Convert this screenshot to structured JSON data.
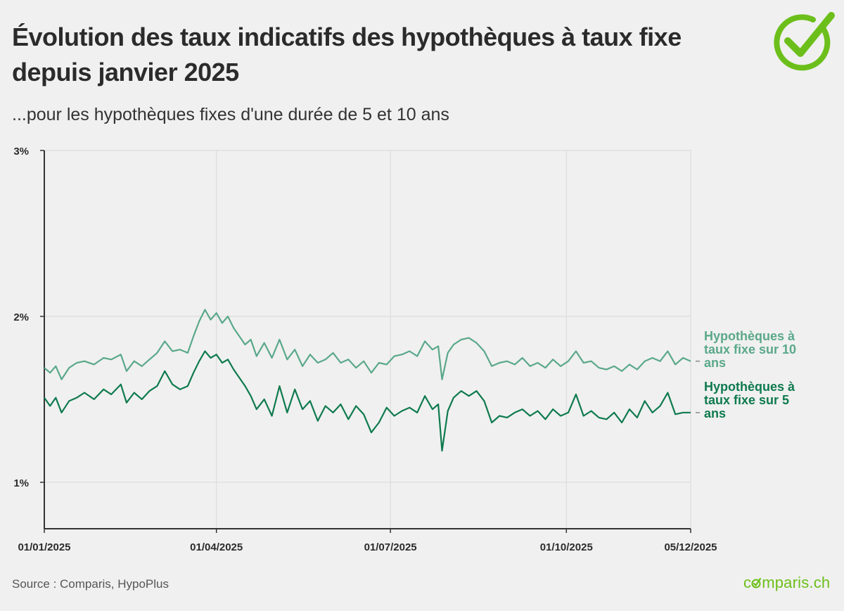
{
  "title": "Évolution des taux indicatifs des hypothèques à taux fixe depuis janvier 2025",
  "subtitle": "...pour les hypothèques fixes d'une durée de 5 et 10 ans",
  "source": "Source : Comparis, HypoPlus",
  "brand": {
    "before": "c",
    "after": "mparis.ch",
    "logo_icon": "check-circle-icon",
    "color": "#6cbf1a"
  },
  "chart_data": {
    "type": "line",
    "title": "Évolution des taux indicatifs des hypothèques à taux fixe depuis janvier 2025",
    "subtitle": "...pour les hypothèques fixes d'une durée de 5 et 10 ans",
    "xlabel": "",
    "ylabel": "",
    "x_range": [
      "2025-01-01",
      "2025-12-05"
    ],
    "x_ticks": [
      "01/01/2025",
      "01/04/2025",
      "01/07/2025",
      "01/10/2025",
      "05/12/2025"
    ],
    "y_ticks": [
      "1%",
      "2%",
      "3%"
    ],
    "ylim": [
      0.72,
      3.0
    ],
    "y_unit": "%",
    "grid": true,
    "legend": "direct labels at right end of each line",
    "series": [
      {
        "name": "Hypothèques à taux fixe sur 10 ans",
        "label_lines": [
          "Hypothèques à",
          "taux fixe sur 10",
          "ans"
        ],
        "color": "#5aa88a",
        "points": [
          [
            "2025-01-01",
            1.69
          ],
          [
            "2025-01-04",
            1.66
          ],
          [
            "2025-01-07",
            1.7
          ],
          [
            "2025-01-10",
            1.62
          ],
          [
            "2025-01-14",
            1.69
          ],
          [
            "2025-01-18",
            1.72
          ],
          [
            "2025-01-22",
            1.73
          ],
          [
            "2025-01-27",
            1.71
          ],
          [
            "2025-02-01",
            1.75
          ],
          [
            "2025-02-05",
            1.74
          ],
          [
            "2025-02-10",
            1.77
          ],
          [
            "2025-02-13",
            1.67
          ],
          [
            "2025-02-17",
            1.73
          ],
          [
            "2025-02-21",
            1.7
          ],
          [
            "2025-02-25",
            1.74
          ],
          [
            "2025-03-01",
            1.78
          ],
          [
            "2025-03-05",
            1.85
          ],
          [
            "2025-03-09",
            1.79
          ],
          [
            "2025-03-13",
            1.8
          ],
          [
            "2025-03-17",
            1.78
          ],
          [
            "2025-03-20",
            1.88
          ],
          [
            "2025-03-23",
            1.97
          ],
          [
            "2025-03-26",
            2.04
          ],
          [
            "2025-03-29",
            1.98
          ],
          [
            "2025-04-01",
            2.02
          ],
          [
            "2025-04-04",
            1.96
          ],
          [
            "2025-04-07",
            2.0
          ],
          [
            "2025-04-10",
            1.93
          ],
          [
            "2025-04-13",
            1.88
          ],
          [
            "2025-04-16",
            1.83
          ],
          [
            "2025-04-19",
            1.86
          ],
          [
            "2025-04-22",
            1.76
          ],
          [
            "2025-04-26",
            1.84
          ],
          [
            "2025-04-30",
            1.75
          ],
          [
            "2025-05-04",
            1.86
          ],
          [
            "2025-05-08",
            1.74
          ],
          [
            "2025-05-12",
            1.8
          ],
          [
            "2025-05-16",
            1.7
          ],
          [
            "2025-05-20",
            1.77
          ],
          [
            "2025-05-24",
            1.72
          ],
          [
            "2025-05-28",
            1.74
          ],
          [
            "2025-06-01",
            1.78
          ],
          [
            "2025-06-05",
            1.72
          ],
          [
            "2025-06-09",
            1.74
          ],
          [
            "2025-06-13",
            1.69
          ],
          [
            "2025-06-17",
            1.73
          ],
          [
            "2025-06-21",
            1.66
          ],
          [
            "2025-06-25",
            1.72
          ],
          [
            "2025-06-29",
            1.71
          ],
          [
            "2025-07-03",
            1.76
          ],
          [
            "2025-07-07",
            1.77
          ],
          [
            "2025-07-11",
            1.79
          ],
          [
            "2025-07-15",
            1.76
          ],
          [
            "2025-07-19",
            1.85
          ],
          [
            "2025-07-23",
            1.8
          ],
          [
            "2025-07-26",
            1.82
          ],
          [
            "2025-07-28",
            1.62
          ],
          [
            "2025-07-31",
            1.78
          ],
          [
            "2025-08-03",
            1.83
          ],
          [
            "2025-08-07",
            1.86
          ],
          [
            "2025-08-11",
            1.87
          ],
          [
            "2025-08-15",
            1.84
          ],
          [
            "2025-08-19",
            1.79
          ],
          [
            "2025-08-23",
            1.7
          ],
          [
            "2025-08-27",
            1.72
          ],
          [
            "2025-08-31",
            1.73
          ],
          [
            "2025-09-04",
            1.71
          ],
          [
            "2025-09-08",
            1.75
          ],
          [
            "2025-09-12",
            1.7
          ],
          [
            "2025-09-16",
            1.72
          ],
          [
            "2025-09-20",
            1.69
          ],
          [
            "2025-09-24",
            1.74
          ],
          [
            "2025-09-28",
            1.7
          ],
          [
            "2025-10-02",
            1.73
          ],
          [
            "2025-10-06",
            1.79
          ],
          [
            "2025-10-10",
            1.72
          ],
          [
            "2025-10-14",
            1.73
          ],
          [
            "2025-10-18",
            1.69
          ],
          [
            "2025-10-22",
            1.68
          ],
          [
            "2025-10-26",
            1.7
          ],
          [
            "2025-10-30",
            1.67
          ],
          [
            "2025-11-03",
            1.71
          ],
          [
            "2025-11-07",
            1.68
          ],
          [
            "2025-11-11",
            1.73
          ],
          [
            "2025-11-15",
            1.75
          ],
          [
            "2025-11-19",
            1.73
          ],
          [
            "2025-11-23",
            1.79
          ],
          [
            "2025-11-27",
            1.71
          ],
          [
            "2025-12-01",
            1.75
          ],
          [
            "2025-12-05",
            1.73
          ]
        ]
      },
      {
        "name": "Hypothèques à taux fixe sur 5 ans",
        "label_lines": [
          "Hypothèques à",
          "taux fixe sur 5",
          "ans"
        ],
        "color": "#0e7a4e",
        "points": [
          [
            "2025-01-01",
            1.51
          ],
          [
            "2025-01-04",
            1.46
          ],
          [
            "2025-01-07",
            1.51
          ],
          [
            "2025-01-10",
            1.42
          ],
          [
            "2025-01-14",
            1.49
          ],
          [
            "2025-01-18",
            1.51
          ],
          [
            "2025-01-22",
            1.54
          ],
          [
            "2025-01-27",
            1.5
          ],
          [
            "2025-02-01",
            1.56
          ],
          [
            "2025-02-05",
            1.53
          ],
          [
            "2025-02-10",
            1.59
          ],
          [
            "2025-02-13",
            1.48
          ],
          [
            "2025-02-17",
            1.54
          ],
          [
            "2025-02-21",
            1.5
          ],
          [
            "2025-02-25",
            1.55
          ],
          [
            "2025-03-01",
            1.58
          ],
          [
            "2025-03-05",
            1.67
          ],
          [
            "2025-03-09",
            1.59
          ],
          [
            "2025-03-13",
            1.56
          ],
          [
            "2025-03-17",
            1.58
          ],
          [
            "2025-03-20",
            1.66
          ],
          [
            "2025-03-23",
            1.73
          ],
          [
            "2025-03-26",
            1.79
          ],
          [
            "2025-03-29",
            1.75
          ],
          [
            "2025-04-01",
            1.77
          ],
          [
            "2025-04-04",
            1.72
          ],
          [
            "2025-04-07",
            1.74
          ],
          [
            "2025-04-10",
            1.68
          ],
          [
            "2025-04-13",
            1.63
          ],
          [
            "2025-04-16",
            1.58
          ],
          [
            "2025-04-19",
            1.52
          ],
          [
            "2025-04-22",
            1.44
          ],
          [
            "2025-04-26",
            1.5
          ],
          [
            "2025-04-30",
            1.4
          ],
          [
            "2025-05-04",
            1.58
          ],
          [
            "2025-05-08",
            1.42
          ],
          [
            "2025-05-12",
            1.56
          ],
          [
            "2025-05-16",
            1.44
          ],
          [
            "2025-05-20",
            1.49
          ],
          [
            "2025-05-24",
            1.37
          ],
          [
            "2025-05-28",
            1.46
          ],
          [
            "2025-06-01",
            1.42
          ],
          [
            "2025-06-05",
            1.47
          ],
          [
            "2025-06-09",
            1.38
          ],
          [
            "2025-06-13",
            1.46
          ],
          [
            "2025-06-17",
            1.41
          ],
          [
            "2025-06-21",
            1.3
          ],
          [
            "2025-06-25",
            1.36
          ],
          [
            "2025-06-29",
            1.45
          ],
          [
            "2025-07-03",
            1.4
          ],
          [
            "2025-07-07",
            1.43
          ],
          [
            "2025-07-11",
            1.45
          ],
          [
            "2025-07-15",
            1.42
          ],
          [
            "2025-07-19",
            1.52
          ],
          [
            "2025-07-23",
            1.44
          ],
          [
            "2025-07-26",
            1.47
          ],
          [
            "2025-07-28",
            1.19
          ],
          [
            "2025-07-31",
            1.43
          ],
          [
            "2025-08-03",
            1.51
          ],
          [
            "2025-08-07",
            1.55
          ],
          [
            "2025-08-11",
            1.52
          ],
          [
            "2025-08-15",
            1.55
          ],
          [
            "2025-08-19",
            1.49
          ],
          [
            "2025-08-23",
            1.36
          ],
          [
            "2025-08-27",
            1.4
          ],
          [
            "2025-08-31",
            1.39
          ],
          [
            "2025-09-04",
            1.42
          ],
          [
            "2025-09-08",
            1.44
          ],
          [
            "2025-09-12",
            1.4
          ],
          [
            "2025-09-16",
            1.43
          ],
          [
            "2025-09-20",
            1.38
          ],
          [
            "2025-09-24",
            1.44
          ],
          [
            "2025-09-28",
            1.4
          ],
          [
            "2025-10-02",
            1.42
          ],
          [
            "2025-10-06",
            1.53
          ],
          [
            "2025-10-10",
            1.4
          ],
          [
            "2025-10-14",
            1.43
          ],
          [
            "2025-10-18",
            1.39
          ],
          [
            "2025-10-22",
            1.38
          ],
          [
            "2025-10-26",
            1.42
          ],
          [
            "2025-10-30",
            1.36
          ],
          [
            "2025-11-03",
            1.44
          ],
          [
            "2025-11-07",
            1.39
          ],
          [
            "2025-11-11",
            1.49
          ],
          [
            "2025-11-15",
            1.42
          ],
          [
            "2025-11-19",
            1.46
          ],
          [
            "2025-11-23",
            1.54
          ],
          [
            "2025-11-27",
            1.41
          ],
          [
            "2025-12-01",
            1.42
          ],
          [
            "2025-12-05",
            1.42
          ]
        ]
      }
    ]
  }
}
